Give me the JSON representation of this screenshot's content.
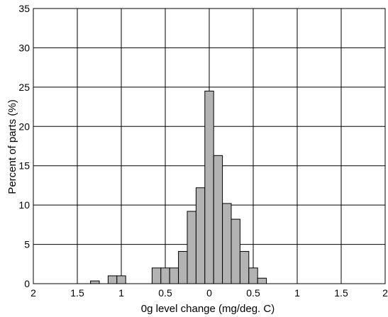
{
  "chart_data": {
    "type": "bar",
    "xlabel": "0g level change (mg/deg. C)",
    "ylabel": "Percent of parts (%)",
    "xlim": [
      -2,
      2
    ],
    "ylim": [
      0,
      35
    ],
    "x_ticks": [
      -2,
      -1.5,
      -1,
      -0.5,
      0,
      0.5,
      1,
      1.5,
      2
    ],
    "x_tick_labels": [
      "2",
      "1.5",
      "1",
      "0.5",
      "0",
      "0.5",
      "1",
      "1.5",
      "2"
    ],
    "y_ticks": [
      0,
      5,
      10,
      15,
      20,
      25,
      30,
      35
    ],
    "y_tick_labels": [
      "0",
      "5",
      "10",
      "15",
      "20",
      "25",
      "30",
      "35"
    ],
    "grid": true,
    "bin_width": 0.1,
    "bars": [
      {
        "x": -1.3,
        "value": 0.35
      },
      {
        "x": -1.1,
        "value": 1.0
      },
      {
        "x": -1.0,
        "value": 1.0
      },
      {
        "x": -0.6,
        "value": 2.0
      },
      {
        "x": -0.5,
        "value": 2.0
      },
      {
        "x": -0.4,
        "value": 2.0
      },
      {
        "x": -0.3,
        "value": 4.1
      },
      {
        "x": -0.2,
        "value": 9.2
      },
      {
        "x": -0.1,
        "value": 12.2
      },
      {
        "x": 0.0,
        "value": 24.5
      },
      {
        "x": 0.1,
        "value": 16.3
      },
      {
        "x": 0.2,
        "value": 10.2
      },
      {
        "x": 0.3,
        "value": 8.2
      },
      {
        "x": 0.4,
        "value": 4.1
      },
      {
        "x": 0.5,
        "value": 2.0
      },
      {
        "x": 0.6,
        "value": 0.7
      }
    ],
    "bar_color": "#b3b3b3"
  }
}
